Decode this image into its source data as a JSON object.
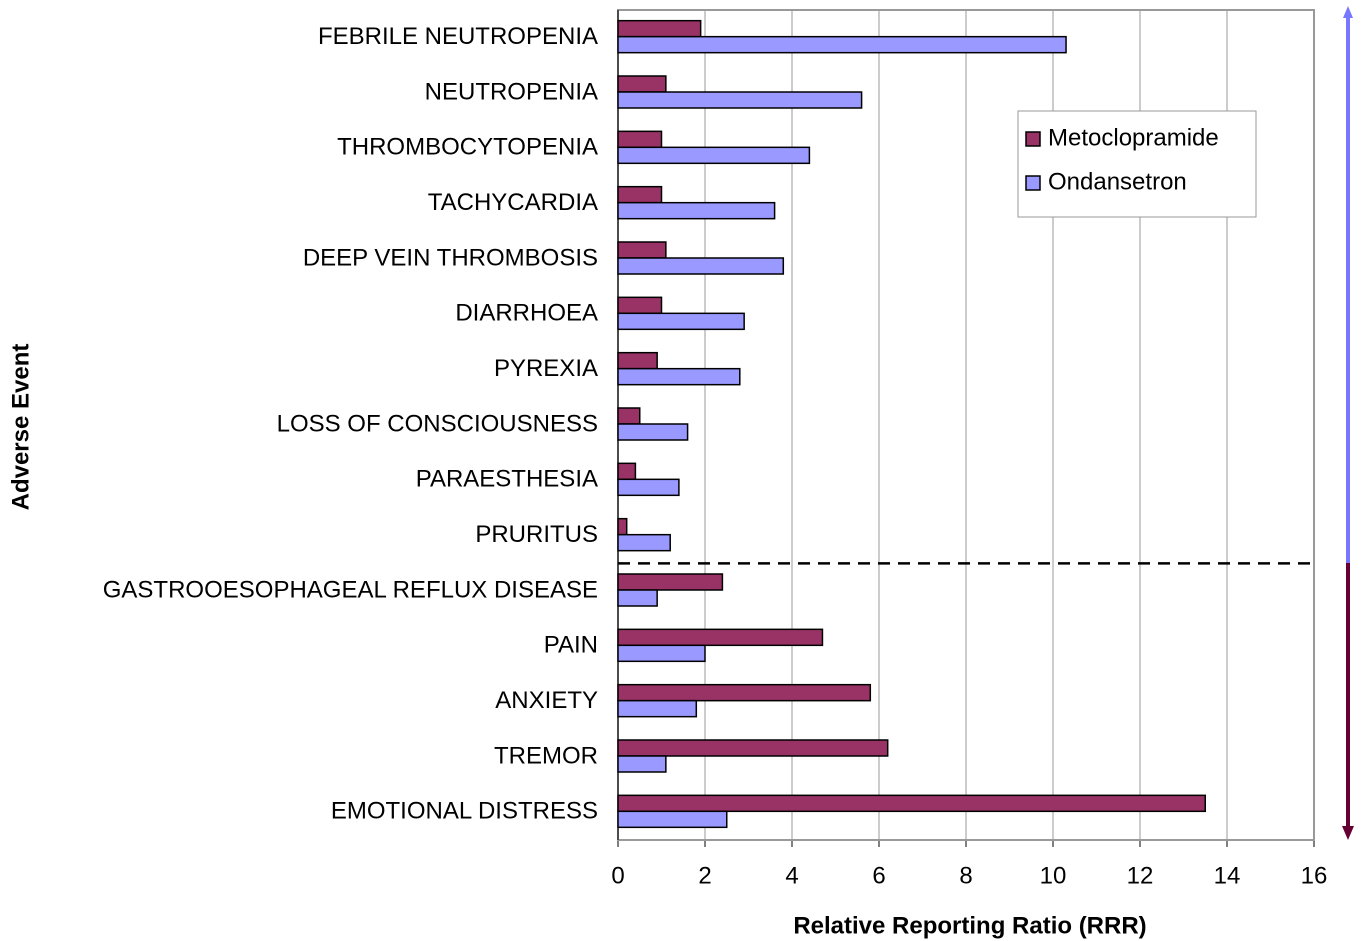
{
  "chart_data": {
    "type": "barh",
    "xlabel": "Relative Reporting Ratio (RRR)",
    "ylabel": "Adverse Event",
    "categories": [
      "FEBRILE NEUTROPENIA",
      "NEUTROPENIA",
      "THROMBOCYTOPENIA",
      "TACHYCARDIA",
      "DEEP VEIN THROMBOSIS",
      "DIARRHOEA",
      "PYREXIA",
      "LOSS OF CONSCIOUSNESS",
      "PARAESTHESIA",
      "PRURITUS",
      "GASTROOESOPHAGEAL REFLUX DISEASE",
      "PAIN",
      "ANXIETY",
      "TREMOR",
      "EMOTIONAL DISTRESS"
    ],
    "series": [
      {
        "name": "Metoclopramide",
        "color": "#993366",
        "values": [
          1.9,
          1.1,
          1.0,
          1.0,
          1.1,
          1.0,
          0.9,
          0.5,
          0.4,
          0.2,
          2.4,
          4.7,
          5.8,
          6.2,
          13.5
        ]
      },
      {
        "name": "Ondansetron",
        "color": "#9999ff",
        "values": [
          10.3,
          5.6,
          4.4,
          3.6,
          3.8,
          2.9,
          2.8,
          1.6,
          1.4,
          1.2,
          0.9,
          2.0,
          1.8,
          1.1,
          2.5
        ]
      }
    ],
    "xlim": [
      0,
      16
    ],
    "xticks": [
      0,
      2,
      4,
      6,
      8,
      10,
      12,
      14,
      16
    ],
    "grid": true,
    "legend": "upper right"
  }
}
